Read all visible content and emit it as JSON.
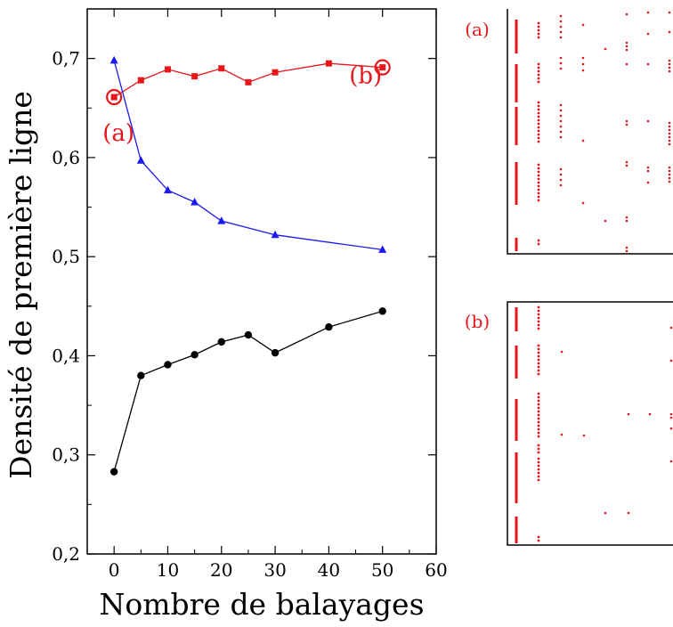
{
  "chart_data": [
    {
      "type": "line",
      "xlabel": "Nombre de balayages",
      "ylabel": "Densité de première ligne",
      "xlim": [
        -5,
        60
      ],
      "ylim": [
        0.2,
        0.75
      ],
      "xticks": [
        "0",
        "10",
        "20",
        "30",
        "40",
        "50",
        "60"
      ],
      "yticks": [
        "0,2",
        "0,3",
        "0,4",
        "0,5",
        "0,6",
        "0,7"
      ],
      "grid": false,
      "series": [
        {
          "color": "#e8161b",
          "marker": "square",
          "x": [
            0,
            5,
            10,
            15,
            20,
            25,
            30,
            40,
            50
          ],
          "y": [
            0.661,
            0.678,
            0.689,
            0.682,
            0.69,
            0.676,
            0.686,
            0.695,
            0.691
          ]
        },
        {
          "color": "#1a1af0",
          "marker": "triangle",
          "x": [
            0,
            5,
            10,
            15,
            20,
            30,
            50
          ],
          "y": [
            0.698,
            0.597,
            0.567,
            0.555,
            0.536,
            0.522,
            0.507
          ]
        },
        {
          "color": "#000000",
          "marker": "circle",
          "x": [
            0,
            5,
            10,
            15,
            20,
            25,
            30,
            40,
            50
          ],
          "y": [
            0.283,
            0.38,
            0.391,
            0.401,
            0.414,
            0.421,
            0.403,
            0.429,
            0.445
          ]
        }
      ],
      "annotations": [
        {
          "text": "(a)",
          "x": 0,
          "y": 0.661
        },
        {
          "text": "(b)",
          "x": 50,
          "y": 0.691
        }
      ]
    },
    {
      "type": "scatter",
      "panel_label": "(a)",
      "color": "#e8161b"
    },
    {
      "type": "scatter",
      "panel_label": "(b)",
      "color": "#e8161b"
    }
  ]
}
